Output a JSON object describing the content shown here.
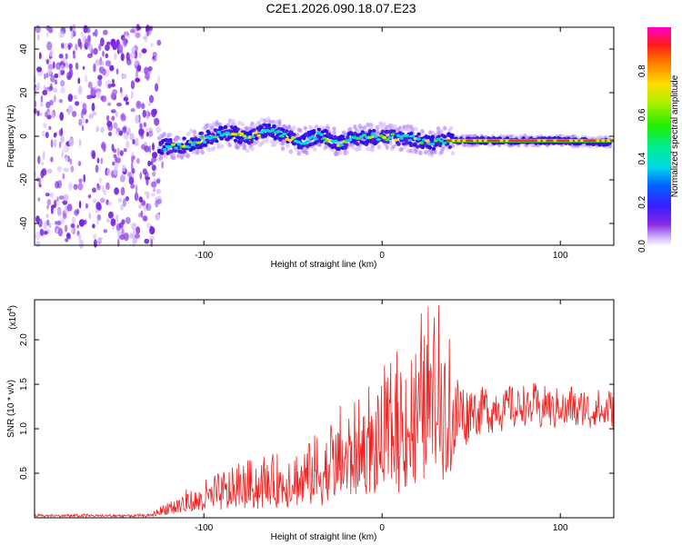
{
  "title": "C2E1.2026.090.18.07.E23",
  "chart_data": [
    {
      "type": "heatmap",
      "name": "spectrogram",
      "xlabel": "Height of straight line (km)",
      "ylabel": "Frequency (Hz)",
      "xlim": [
        -195,
        130
      ],
      "ylim": [
        -50,
        50
      ],
      "x_ticks": [
        -100,
        0,
        100
      ],
      "x_tick_labels": [
        "-100",
        "0",
        "100"
      ],
      "y_ticks": [
        -40,
        -20,
        0,
        20,
        40
      ],
      "y_tick_labels": [
        "-40",
        "-20",
        "0",
        "20",
        "40"
      ],
      "noise_region_km": [
        -195,
        -125
      ],
      "signal_track": [
        {
          "x": -125,
          "f": -5.0
        },
        {
          "x": -110,
          "f": -4.0
        },
        {
          "x": -95,
          "f": 0.0
        },
        {
          "x": -85,
          "f": 2.0
        },
        {
          "x": -75,
          "f": -1.0
        },
        {
          "x": -65,
          "f": 3.0
        },
        {
          "x": -55,
          "f": 0.0
        },
        {
          "x": -45,
          "f": -3.0
        },
        {
          "x": -35,
          "f": 1.0
        },
        {
          "x": -25,
          "f": -3.0
        },
        {
          "x": -15,
          "f": -1.0
        },
        {
          "x": 0,
          "f": 0.0
        },
        {
          "x": 15,
          "f": -1.0
        },
        {
          "x": 25,
          "f": -3.0
        },
        {
          "x": 35,
          "f": -2.0
        },
        {
          "x": 60,
          "f": -2.0
        },
        {
          "x": 100,
          "f": -2.0
        },
        {
          "x": 130,
          "f": -3.0
        }
      ],
      "colorbar": {
        "label": "Normalized spectral amplitude",
        "range": [
          0,
          1
        ],
        "ticks": [
          0.0,
          0.2,
          0.4,
          0.6,
          0.8
        ],
        "tick_labels": [
          "0.0",
          "0.2",
          "0.4",
          "0.6",
          "0.8"
        ]
      }
    },
    {
      "type": "line",
      "name": "snr",
      "color": "#ee2222",
      "xlabel": "Height of straight line (km)",
      "ylabel": "SNR (10 * v/v)",
      "exponent_label": "(x10",
      "exponent": "4",
      "exponent_close": ")",
      "xlim": [
        -195,
        130
      ],
      "ylim": [
        0,
        2.45
      ],
      "x_ticks": [
        -100,
        0,
        100
      ],
      "x_tick_labels": [
        "-100",
        "0",
        "100"
      ],
      "y_ticks": [
        0.5,
        1.0,
        1.5,
        2.0
      ],
      "y_tick_labels": [
        "0.5",
        "1.0",
        "1.5",
        "2.0"
      ],
      "envelope": [
        {
          "x": -195,
          "base": 0.02,
          "amp": 0.02
        },
        {
          "x": -130,
          "base": 0.02,
          "amp": 0.02
        },
        {
          "x": -120,
          "base": 0.07,
          "amp": 0.13
        },
        {
          "x": -100,
          "base": 0.12,
          "amp": 0.25
        },
        {
          "x": -80,
          "base": 0.18,
          "amp": 0.4
        },
        {
          "x": -60,
          "base": 0.22,
          "amp": 0.45
        },
        {
          "x": -40,
          "base": 0.3,
          "amp": 0.55
        },
        {
          "x": -20,
          "base": 0.4,
          "amp": 0.75
        },
        {
          "x": 0,
          "base": 0.55,
          "amp": 0.9
        },
        {
          "x": 20,
          "base": 0.75,
          "amp": 1.2
        },
        {
          "x": 30,
          "base": 0.95,
          "amp": 1.35
        },
        {
          "x": 38,
          "base": 1.1,
          "amp": 1.3
        },
        {
          "x": 50,
          "base": 1.2,
          "amp": 0.5
        },
        {
          "x": 80,
          "base": 1.25,
          "amp": 0.45
        },
        {
          "x": 110,
          "base": 1.22,
          "amp": 0.45
        },
        {
          "x": 130,
          "base": 1.2,
          "amp": 0.4
        }
      ]
    }
  ]
}
